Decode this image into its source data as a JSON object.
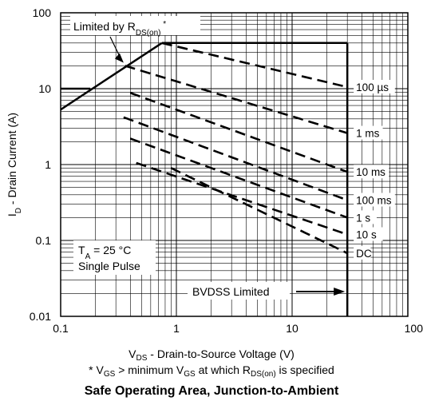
{
  "chart_data": {
    "type": "line",
    "title": "Safe Operating Area, Junction-to-Ambient",
    "xlabel": {
      "main": "V",
      "sub": "DS",
      "rest": " - Drain-to-Source Voltage (V)"
    },
    "ylabel": {
      "main": "I",
      "sub": "D",
      "rest": " - Drain Current (A)"
    },
    "footnote": {
      "p1": "* V",
      "s1": "GS",
      "p2": " > minimum V",
      "s2": "GS",
      "p3": " at which R",
      "s3": "DS(on)",
      "p4": " is specified"
    },
    "xscale": "log",
    "yscale": "log",
    "xlim": [
      0.1,
      100
    ],
    "ylim": [
      0.01,
      100
    ],
    "x_ticks": [
      {
        "value": 0.1,
        "label": "0.1"
      },
      {
        "value": 1,
        "label": "1"
      },
      {
        "value": 10,
        "label": "10"
      },
      {
        "value": 100,
        "label": "100"
      }
    ],
    "y_ticks": [
      {
        "value": 0.01,
        "label": "0.01"
      },
      {
        "value": 0.1,
        "label": "0.1"
      },
      {
        "value": 1,
        "label": "1"
      },
      {
        "value": 10,
        "label": "10"
      },
      {
        "value": 100,
        "label": "100"
      }
    ],
    "grid": true,
    "limits": {
      "rdson_line": [
        [
          0.1,
          5.3
        ],
        [
          0.75,
          40
        ]
      ],
      "current_limit_top": {
        "y": 40,
        "x": [
          0.75,
          30
        ]
      },
      "current_limit_low": {
        "y": 10,
        "x": [
          0.1,
          0.18
        ]
      },
      "bvdss_limit": {
        "x": 30,
        "y": [
          0.01,
          40
        ]
      }
    },
    "series": [
      {
        "name": "100 µs",
        "points": [
          [
            0.75,
            40
          ],
          [
            30,
            10.5
          ]
        ]
      },
      {
        "name": "1 ms",
        "points": [
          [
            0.36,
            20
          ],
          [
            30,
            2.6
          ]
        ]
      },
      {
        "name": "10 ms",
        "points": [
          [
            0.4,
            8.8
          ],
          [
            30,
            0.8
          ]
        ]
      },
      {
        "name": "100 ms",
        "points": [
          [
            0.35,
            4.2
          ],
          [
            30,
            0.34
          ]
        ]
      },
      {
        "name": "1 s",
        "points": [
          [
            0.4,
            2.2
          ],
          [
            30,
            0.2
          ]
        ]
      },
      {
        "name": "10 s",
        "points": [
          [
            0.45,
            1.05
          ],
          [
            30,
            0.12
          ]
        ]
      },
      {
        "name": "DC",
        "points": [
          [
            0.9,
            0.9
          ],
          [
            30,
            0.068
          ]
        ]
      }
    ],
    "annotations": {
      "rdson": {
        "text": "Limited by R",
        "sub": "DS(on)",
        "sup": "*"
      },
      "ta": {
        "main": "T",
        "sub": "A",
        "rest": " = 25 °C"
      },
      "pulse": "Single Pulse",
      "bvdss": "BVDSS Limited"
    }
  }
}
